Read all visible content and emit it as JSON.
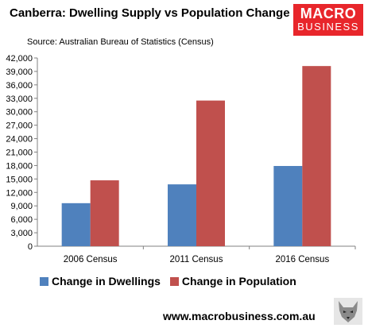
{
  "header": {
    "title": "Canberra: Dwelling Supply vs Population Change",
    "source": "Source: Australian Bureau of Statistics (Census)"
  },
  "logo": {
    "line1": "MACRO",
    "line2": "BUSINESS",
    "color": "#e8262b"
  },
  "footer": {
    "website": "www.macrobusiness.com.au",
    "icon": "wolf-logo-icon"
  },
  "chart_data": {
    "type": "bar",
    "title": "Canberra: Dwelling Supply vs Population Change",
    "categories": [
      "2006 Census",
      "2011 Census",
      "2016 Census"
    ],
    "series": [
      {
        "name": "Change in Dwellings",
        "color": "#4f81bd",
        "values": [
          9600,
          13800,
          17900
        ]
      },
      {
        "name": "Change in Population",
        "color": "#c0504d",
        "values": [
          14700,
          32500,
          40200
        ]
      }
    ],
    "ylim": [
      0,
      42000
    ],
    "yticks": [
      "0",
      "3,000",
      "6,000",
      "9,000",
      "12,000",
      "15,000",
      "18,000",
      "21,000",
      "24,000",
      "27,000",
      "30,000",
      "33,000",
      "36,000",
      "39,000",
      "42,000"
    ],
    "ytick_values": [
      0,
      3000,
      6000,
      9000,
      12000,
      15000,
      18000,
      21000,
      24000,
      27000,
      30000,
      33000,
      36000,
      39000,
      42000
    ],
    "grid": false,
    "legend_position": "bottom",
    "xlabel": "",
    "ylabel": ""
  }
}
